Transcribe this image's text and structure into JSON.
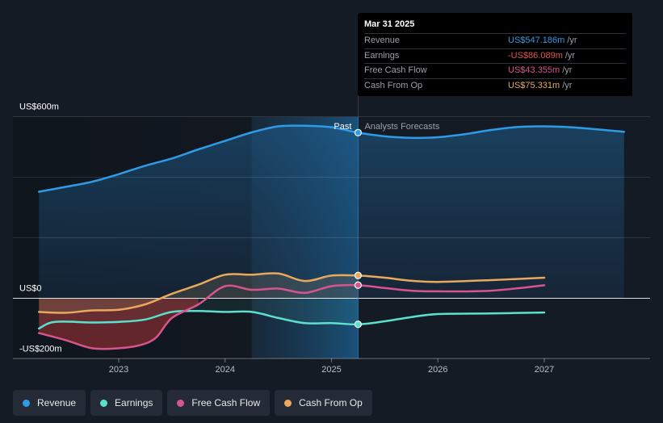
{
  "chart_data": {
    "type": "line",
    "y_axis": {
      "ylim": [
        -200,
        600
      ],
      "labels": [
        "US$600m",
        "US$0",
        "-US$200m"
      ],
      "label_values": [
        600,
        0,
        -200
      ]
    },
    "x_axis": {
      "ticks": [
        "2023",
        "2024",
        "2025",
        "2026",
        "2027"
      ],
      "tick_values": [
        2023,
        2024,
        2025,
        2026,
        2027
      ]
    },
    "divider_x": 2025.25,
    "highlight_start": 2024.25,
    "past_label": "Past",
    "forecast_label": "Analysts Forecasts",
    "series": [
      {
        "name": "Revenue",
        "color": "#2e9be6",
        "points": [
          [
            2022.25,
            352
          ],
          [
            2022.5,
            368
          ],
          [
            2022.75,
            385
          ],
          [
            2023.0,
            410
          ],
          [
            2023.25,
            438
          ],
          [
            2023.5,
            462
          ],
          [
            2023.75,
            492
          ],
          [
            2024.0,
            520
          ],
          [
            2024.25,
            548
          ],
          [
            2024.5,
            568
          ],
          [
            2024.75,
            570
          ],
          [
            2025.0,
            565
          ],
          [
            2025.25,
            547
          ],
          [
            2025.5,
            535
          ],
          [
            2025.75,
            530
          ],
          [
            2026.0,
            532
          ],
          [
            2026.25,
            542
          ],
          [
            2026.5,
            556
          ],
          [
            2026.75,
            566
          ],
          [
            2027.0,
            568
          ],
          [
            2027.25,
            565
          ],
          [
            2027.5,
            558
          ],
          [
            2027.75,
            550
          ]
        ]
      },
      {
        "name": "Earnings",
        "color": "#5ce0cc",
        "points": [
          [
            2022.25,
            -100
          ],
          [
            2022.4,
            -78
          ],
          [
            2022.75,
            -80
          ],
          [
            2023.0,
            -78
          ],
          [
            2023.25,
            -70
          ],
          [
            2023.5,
            -45
          ],
          [
            2023.75,
            -42
          ],
          [
            2024.0,
            -45
          ],
          [
            2024.25,
            -45
          ],
          [
            2024.5,
            -65
          ],
          [
            2024.75,
            -82
          ],
          [
            2025.0,
            -82
          ],
          [
            2025.25,
            -86
          ],
          [
            2025.5,
            -76
          ],
          [
            2025.75,
            -62
          ],
          [
            2026.0,
            -52
          ],
          [
            2026.5,
            -50
          ],
          [
            2027.0,
            -47
          ]
        ]
      },
      {
        "name": "Free Cash Flow",
        "color": "#d6558f",
        "points": [
          [
            2022.25,
            -115
          ],
          [
            2022.5,
            -138
          ],
          [
            2022.75,
            -165
          ],
          [
            2023.0,
            -165
          ],
          [
            2023.2,
            -155
          ],
          [
            2023.35,
            -130
          ],
          [
            2023.5,
            -65
          ],
          [
            2023.75,
            -20
          ],
          [
            2024.0,
            40
          ],
          [
            2024.25,
            28
          ],
          [
            2024.5,
            32
          ],
          [
            2024.75,
            18
          ],
          [
            2025.0,
            40
          ],
          [
            2025.25,
            43
          ],
          [
            2025.5,
            34
          ],
          [
            2025.75,
            25
          ],
          [
            2026.0,
            23
          ],
          [
            2026.5,
            25
          ],
          [
            2027.0,
            43
          ]
        ]
      },
      {
        "name": "Cash From Op",
        "color": "#e8a95c",
        "points": [
          [
            2022.25,
            -45
          ],
          [
            2022.5,
            -48
          ],
          [
            2022.75,
            -40
          ],
          [
            2023.0,
            -38
          ],
          [
            2023.25,
            -20
          ],
          [
            2023.5,
            15
          ],
          [
            2023.75,
            45
          ],
          [
            2024.0,
            78
          ],
          [
            2024.25,
            78
          ],
          [
            2024.5,
            82
          ],
          [
            2024.75,
            57
          ],
          [
            2025.0,
            75
          ],
          [
            2025.25,
            75
          ],
          [
            2025.5,
            68
          ],
          [
            2025.75,
            58
          ],
          [
            2026.0,
            54
          ],
          [
            2026.5,
            60
          ],
          [
            2027.0,
            68
          ]
        ]
      }
    ],
    "highlight_points": [
      {
        "series": "Revenue",
        "x": 2025.25,
        "y": 547.186
      },
      {
        "series": "Cash From Op",
        "x": 2025.25,
        "y": 75.331
      },
      {
        "series": "Free Cash Flow",
        "x": 2025.25,
        "y": 43.355
      },
      {
        "series": "Earnings",
        "x": 2025.25,
        "y": -86.089
      }
    ]
  },
  "tooltip": {
    "date": "Mar 31 2025",
    "rows": [
      {
        "label": "Revenue",
        "value": "US$547.186m",
        "unit": "/yr",
        "color": "#2e9be6"
      },
      {
        "label": "Earnings",
        "value": "-US$86.089m",
        "unit": "/yr",
        "color": "#e05252"
      },
      {
        "label": "Free Cash Flow",
        "value": "US$43.355m",
        "unit": "/yr",
        "color": "#d6558f"
      },
      {
        "label": "Cash From Op",
        "value": "US$75.331m",
        "unit": "/yr",
        "color": "#e8a95c"
      }
    ]
  },
  "legend": [
    {
      "label": "Revenue",
      "color": "#2e9be6"
    },
    {
      "label": "Earnings",
      "color": "#5ce0cc"
    },
    {
      "label": "Free Cash Flow",
      "color": "#d6558f"
    },
    {
      "label": "Cash From Op",
      "color": "#e8a95c"
    }
  ]
}
